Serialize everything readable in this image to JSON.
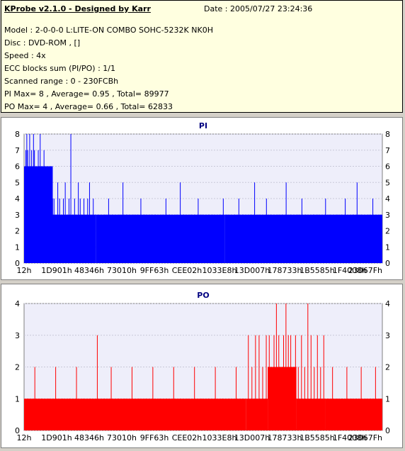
{
  "header": {
    "title": "KProbe v2.1.0 - Designed by Karr",
    "date": "Date : 2005/07/27 23:24:36",
    "lines": [
      "Model : 2-0-0-0 L:LITE-ON COMBO SOHC-5232K NK0H",
      "Disc : DVD-ROM ,  []",
      "Speed : 4x",
      "ECC blocks sum (PI/PO) : 1/1",
      "Scanned range : 0 - 230FCBh",
      "PI Max= 8 , Average= 0.95 , Total= 89977",
      "PO Max= 4 , Average= 0.66 , Total= 62833"
    ]
  },
  "chart_data": [
    {
      "type": "bar",
      "title": "PI",
      "color": "#0000ff",
      "ylim": [
        0,
        8
      ],
      "yticks": [
        "0",
        "1",
        "2",
        "3",
        "4",
        "5",
        "6",
        "7",
        "8"
      ],
      "xticks": [
        "12h",
        "1D901h",
        "48346h",
        "73010h",
        "9FF63h",
        "CEE02h",
        "1033E8h",
        "13D007h",
        "178733h",
        "1B5585h",
        "1F4008h",
        "23067Fh"
      ],
      "segments": [
        {
          "from": 0.0,
          "to": 0.08,
          "base": 6,
          "values": [
            6,
            7,
            8,
            7,
            6,
            8,
            6,
            7,
            6,
            8,
            7,
            6,
            5,
            6,
            7,
            6,
            8,
            6,
            5,
            6,
            7,
            5,
            6,
            5,
            6,
            5,
            4,
            5,
            6,
            4
          ]
        },
        {
          "from": 0.08,
          "to": 0.2,
          "base": 3,
          "values": [
            4,
            3,
            5,
            4,
            3,
            4,
            5,
            3,
            4,
            8,
            3,
            4,
            3,
            5,
            4,
            3,
            4,
            3,
            4,
            5,
            3,
            4,
            3
          ]
        },
        {
          "from": 0.2,
          "to": 0.56,
          "base": 3,
          "values": [
            3,
            2,
            3,
            4,
            3,
            2,
            3,
            5,
            3,
            2,
            3,
            3,
            4,
            3,
            2,
            3,
            3,
            2,
            3,
            4,
            3,
            2,
            3,
            5,
            3,
            2,
            3,
            3,
            4,
            3,
            2,
            3,
            3,
            2,
            3,
            4
          ]
        },
        {
          "from": 0.56,
          "to": 1.0,
          "base": 3,
          "values": [
            3,
            2,
            3,
            4,
            3,
            2,
            3,
            5,
            3,
            2,
            4,
            3,
            2,
            3,
            3,
            5,
            3,
            2,
            3,
            4,
            3,
            2,
            3,
            3,
            2,
            4,
            3,
            2,
            3,
            3,
            4,
            2,
            3,
            5,
            3,
            2,
            3,
            4,
            2,
            3
          ]
        }
      ]
    },
    {
      "type": "bar",
      "title": "PO",
      "color": "#ff0000",
      "ylim": [
        0,
        4
      ],
      "yticks": [
        "0",
        "1",
        "2",
        "3",
        "4"
      ],
      "xticks": [
        "12h",
        "1D901h",
        "48346h",
        "73010h",
        "9FF63h",
        "CEE02h",
        "1033E8h",
        "13D007h",
        "178733h",
        "1B5585h",
        "1F4008h",
        "23067Fh"
      ],
      "segments": [
        {
          "from": 0.0,
          "to": 0.62,
          "base": 1,
          "values": [
            1,
            2,
            1,
            1,
            2,
            1,
            1,
            2,
            1,
            1,
            3,
            1,
            2,
            1,
            1,
            2,
            1,
            1,
            2,
            1,
            1,
            2,
            1,
            1,
            2,
            1,
            1,
            2,
            1,
            1,
            2,
            1
          ]
        },
        {
          "from": 0.62,
          "to": 0.68,
          "base": 1,
          "values": [
            3,
            2,
            3,
            3,
            2,
            3
          ]
        },
        {
          "from": 0.68,
          "to": 0.76,
          "base": 2,
          "values": [
            3,
            2,
            3,
            4,
            3,
            2,
            3,
            4,
            3,
            3,
            2,
            3
          ]
        },
        {
          "from": 0.76,
          "to": 0.84,
          "base": 1,
          "values": [
            2,
            3,
            2,
            4,
            3,
            2,
            3,
            2,
            3
          ]
        },
        {
          "from": 0.84,
          "to": 1.0,
          "base": 1,
          "values": [
            1,
            2,
            1,
            1,
            2,
            1,
            1,
            2,
            1,
            1,
            2,
            1
          ]
        }
      ]
    }
  ]
}
